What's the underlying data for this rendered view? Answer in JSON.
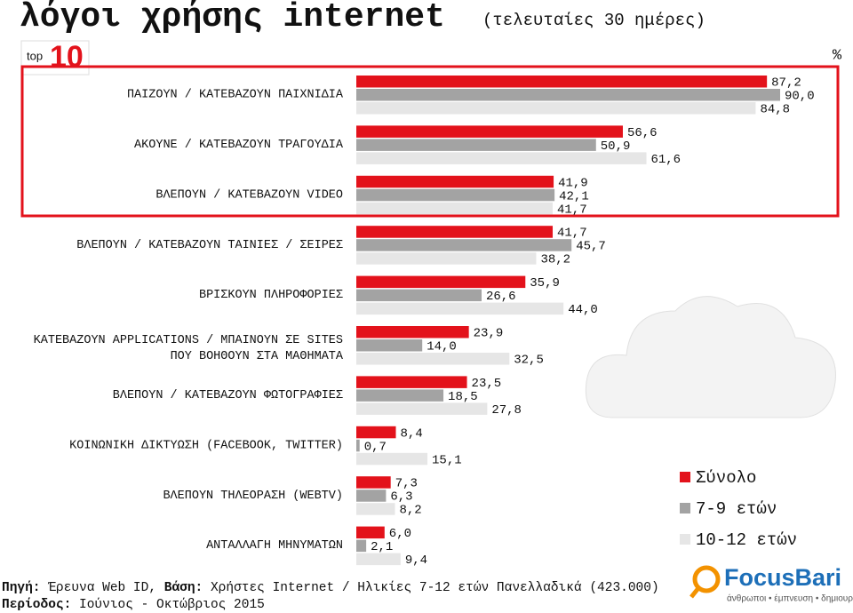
{
  "chart_data": {
    "type": "hbar",
    "title": "λόγοι χρήσης internet",
    "subtitle": "(τελευταίες 30 ημέρες)",
    "unit": "%",
    "categories": [
      "ΠΑΙΖΟΥΝ / ΚΑΤΕΒΑΖΟΥΝ ΠΑΙΧΝΙΔΙΑ",
      "ΑΚΟΥΝΕ / ΚΑΤΕΒΑΖΟΥΝ ΤΡΑΓΟΥΔΙΑ",
      "ΒΛΕΠΟΥΝ / ΚΑΤΕΒΑΖΟΥΝ VIDEO",
      "ΒΛΕΠΟΥΝ / ΚΑΤΕΒΑΖΟΥΝ ΤΑΙΝΙΕΣ / ΣΕΙΡΕΣ",
      "ΒΡΙΣΚΟΥΝ ΠΛΗΡΟΦΟΡΙΕΣ",
      "ΚΑΤΕΒΑΖΟΥΝ APPLICATIONS / ΜΠΑΙΝΟΥΝ ΣΕ SITES\nΠΟΥ ΒΟΗΘΟΥΝ ΣΤΑ ΜΑΘΗΜΑΤΑ",
      "ΒΛΕΠΟΥΝ / ΚΑΤΕΒΑΖΟΥΝ ΦΩΤΟΓΡΑΦΙΕΣ",
      "ΚΟΙΝΩΝΙΚΗ ΔΙΚΤΥΩΣΗ (FACEBOOK, TWITTER)",
      "ΒΛΕΠΟΥΝ ΤΗΛΕΟΡΑΣΗ (WEBTV)",
      "ΑΝΤΑΛΛΑΓΗ ΜΗΝΥΜΑΤΩΝ"
    ],
    "series": [
      {
        "name": "Σύνολο",
        "color": "#e3121b",
        "values": [
          87.2,
          56.6,
          41.9,
          41.7,
          35.9,
          23.9,
          23.5,
          8.4,
          7.3,
          6.0
        ],
        "value_labels": [
          "87,2",
          "56,6",
          "41,9",
          "41,7",
          "35,9",
          "23,9",
          "23,5",
          "8,4",
          "7,3",
          "6,0"
        ]
      },
      {
        "name": "7-9 ετών",
        "color": "#a3a3a3",
        "values": [
          90.0,
          50.9,
          42.1,
          45.7,
          26.6,
          14.0,
          18.5,
          0.7,
          6.3,
          2.1
        ],
        "value_labels": [
          "90,0",
          "50,9",
          "42,1",
          "45,7",
          "26,6",
          "14,0",
          "18,5",
          "0,7",
          "6,3",
          "2,1"
        ]
      },
      {
        "name": "10-12 ετών",
        "color": "#e6e6e6",
        "values": [
          84.8,
          61.6,
          41.7,
          38.2,
          44.0,
          32.5,
          27.8,
          15.1,
          8.2,
          9.4
        ],
        "value_labels": [
          "84,8",
          "61,6",
          "41,7",
          "38,2",
          "44,0",
          "32,5",
          "27,8",
          "15,1",
          "8,2",
          "9,4"
        ]
      }
    ],
    "source_label": "Πηγή:",
    "source_text": "Έρευνα Web ID,",
    "base_label": "Βάση:",
    "base_text": "Χρήστες Internet / Ηλικίες 7-12 ετών Πανελλαδικά (423.000)",
    "period_label": "Περίοδος:",
    "period_text": "Ιούνιος - Οκτώβριος 2015",
    "logo_left": {
      "small": "top",
      "big": "10"
    },
    "logo_right": {
      "name": "FocusBari",
      "tagline": "άνθρωποι • έμπνευση • δημιουργία"
    }
  }
}
